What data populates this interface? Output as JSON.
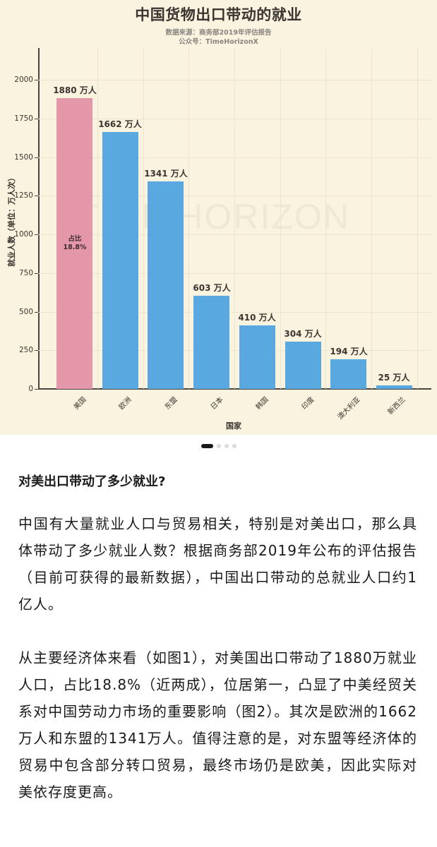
{
  "chart_data": {
    "type": "bar",
    "title": "中国货物出口带动的就业",
    "subtitle_lines": [
      "数据来源：商务部2019年评估报告",
      "公众号：TimeHorizonX"
    ],
    "xlabel": "国家",
    "ylabel": "就业人数（单位：万人次）",
    "ylim": [
      0,
      2200
    ],
    "yticks": [
      0,
      250,
      500,
      750,
      1000,
      1250,
      1500,
      1750,
      2000
    ],
    "grid": true,
    "categories": [
      "美国",
      "欧洲",
      "东盟",
      "日本",
      "韩国",
      "印度",
      "澳大利亚",
      "新西兰"
    ],
    "values": [
      1880,
      1662,
      1341,
      603,
      410,
      304,
      194,
      25
    ],
    "value_labels": [
      "1880 万人",
      "1662 万人",
      "1341 万人",
      "603 万人",
      "410 万人",
      "304 万人",
      "194 万人",
      "25 万人"
    ],
    "bar_colors": [
      "#e597aa",
      "#5aa8e0",
      "#5aa8e0",
      "#5aa8e0",
      "#5aa8e0",
      "#5aa8e0",
      "#5aa8e0",
      "#5aa8e0"
    ],
    "annotation": {
      "category": "美国",
      "lines": [
        "占比",
        "18.8%"
      ]
    },
    "watermark": "TIME HORIZON",
    "background": "#faf3df"
  },
  "carousel": {
    "total": 4,
    "active": 0
  },
  "article": {
    "heading": "对美出口带动了多少就业?",
    "paragraph1": "中国有大量就业人口与贸易相关，特别是对美出口，那么具体带动了多少就业人数？根据商务部2019年公布的评估报告（目前可获得的最新数据），中国出口带动的总就业人口约1亿人。",
    "paragraph2": "从主要经济体来看（如图1），对美国出口带动了1880万就业人口，占比18.8%（近两成），位居第一，凸显了中美经贸关系对中国劳动力市场的重要影响（图2）。其次是欧洲的1662万人和东盟的1341万人。值得注意的是，对东盟等经济体的贸易中包含部分转口贸易，最终市场仍是欧美，因此实际对美依存度更高。"
  }
}
